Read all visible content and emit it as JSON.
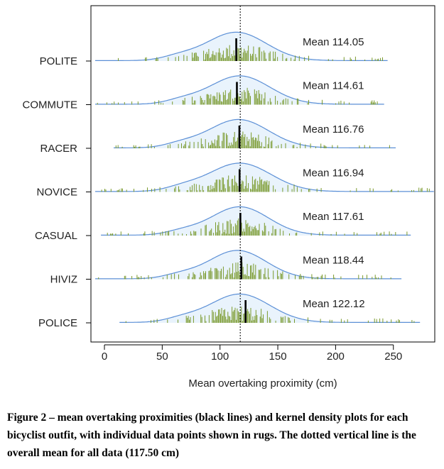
{
  "chart_data": {
    "type": "density-ridgeline",
    "xlabel": "Mean overtaking proximity (cm)",
    "xlim": [
      -12,
      285
    ],
    "xticks": [
      0,
      50,
      100,
      150,
      200,
      250
    ],
    "overall_mean": 117.5,
    "colors": {
      "density_line": "#5b8fd6",
      "density_fill": "#e9f3fc",
      "rug": "#7a9a2c",
      "mean_line": "#000000",
      "overall_mean_line": "#000000"
    },
    "series": [
      {
        "name": "POLITE",
        "mean": 114.05,
        "mean_label": "Mean 114.05",
        "range": [
          -8,
          245
        ],
        "sd": 26,
        "peak": 114
      },
      {
        "name": "COMMUTE",
        "mean": 114.61,
        "mean_label": "Mean 114.61",
        "range": [
          -8,
          242
        ],
        "sd": 26,
        "peak": 117
      },
      {
        "name": "RACER",
        "mean": 116.76,
        "mean_label": "Mean 116.76",
        "range": [
          8,
          252
        ],
        "sd": 26,
        "peak": 116
      },
      {
        "name": "NOVICE",
        "mean": 116.94,
        "mean_label": "Mean 116.94",
        "range": [
          -8,
          285
        ],
        "sd": 27,
        "peak": 117
      },
      {
        "name": "CASUAL",
        "mean": 117.61,
        "mean_label": "Mean 117.61",
        "range": [
          -3,
          265
        ],
        "sd": 25,
        "peak": 117
      },
      {
        "name": "HIVIZ",
        "mean": 118.44,
        "mean_label": "Mean 118.44",
        "range": [
          -8,
          257
        ],
        "sd": 25,
        "peak": 115
      },
      {
        "name": "POLICE",
        "mean": 122.12,
        "mean_label": "Mean 122.12",
        "range": [
          13,
          273
        ],
        "sd": 26,
        "peak": 117
      }
    ]
  },
  "caption": "Figure 2 – mean overtaking proximities (black lines) and kernel density plots for each bicyclist outfit, with individual data points shown in rugs. The dotted vertical line is the overall mean for all data (117.50 cm)"
}
